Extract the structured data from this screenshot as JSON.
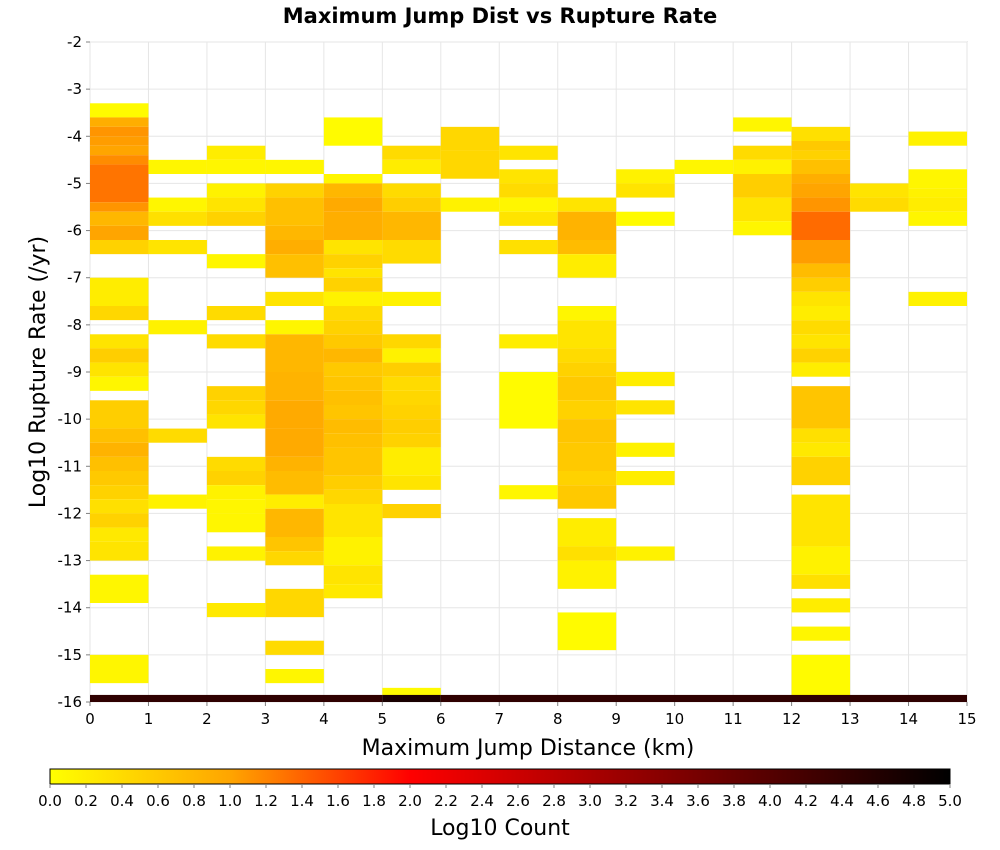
{
  "chart_data": {
    "type": "heatmap",
    "title": "Maximum Jump Dist vs Rupture Rate",
    "xlabel": "Maximum Jump Distance (km)",
    "ylabel": "Log10 Rupture Rate (/yr)",
    "xlim": [
      0,
      15
    ],
    "ylim": [
      -16,
      -2
    ],
    "x_ticks": [
      "0",
      "1",
      "2",
      "3",
      "4",
      "5",
      "6",
      "7",
      "8",
      "9",
      "10",
      "11",
      "12",
      "13",
      "14",
      "15"
    ],
    "y_ticks": [
      "-2",
      "-3",
      "-4",
      "-5",
      "-6",
      "-7",
      "-8",
      "-9",
      "-10",
      "-11",
      "-12",
      "-13",
      "-14",
      "-15",
      "-16"
    ],
    "grid": true,
    "cell_size": {
      "dx": 1,
      "dy": 0.1
    },
    "colorbar": {
      "label": "Log10 Count",
      "range": [
        0,
        5
      ],
      "ticks": [
        "0.0",
        "0.2",
        "0.4",
        "0.6",
        "0.8",
        "1.0",
        "1.2",
        "1.4",
        "1.6",
        "1.8",
        "2.0",
        "2.2",
        "2.4",
        "2.6",
        "2.8",
        "3.0",
        "3.2",
        "3.4",
        "3.6",
        "3.8",
        "4.0",
        "4.2",
        "4.4",
        "4.6",
        "4.8",
        "5.0"
      ],
      "colors": [
        "#ffff00",
        "#ffa500",
        "#ff0000",
        "#7f0000",
        "#000000"
      ]
    },
    "columns": [
      {
        "x": 0,
        "segments": [
          [
            -3.3,
            -3.6,
            0.05
          ],
          [
            -3.6,
            -3.8,
            0.9
          ],
          [
            -3.8,
            -4.0,
            1.1
          ],
          [
            -4.0,
            -4.2,
            1.05
          ],
          [
            -4.2,
            -4.4,
            1.0
          ],
          [
            -4.4,
            -4.6,
            1.15
          ],
          [
            -4.6,
            -5.4,
            1.3
          ],
          [
            -5.4,
            -5.6,
            1.1
          ],
          [
            -5.6,
            -5.9,
            0.8
          ],
          [
            -5.9,
            -6.2,
            1.0
          ],
          [
            -6.2,
            -6.5,
            0.5
          ],
          [
            -7.0,
            -7.6,
            0.2
          ],
          [
            -7.6,
            -7.9,
            0.45
          ],
          [
            -8.2,
            -8.5,
            0.3
          ],
          [
            -8.5,
            -8.8,
            0.55
          ],
          [
            -8.8,
            -9.1,
            0.3
          ],
          [
            -9.1,
            -9.4,
            0.1
          ],
          [
            -9.6,
            -10.2,
            0.55
          ],
          [
            -10.2,
            -10.5,
            0.7
          ],
          [
            -10.5,
            -10.8,
            0.85
          ],
          [
            -10.8,
            -11.1,
            0.7
          ],
          [
            -11.1,
            -11.4,
            0.6
          ],
          [
            -11.4,
            -11.7,
            0.5
          ],
          [
            -11.7,
            -12.0,
            0.35
          ],
          [
            -12.0,
            -12.3,
            0.5
          ],
          [
            -12.3,
            -12.6,
            0.25
          ],
          [
            -12.6,
            -13.0,
            0.3
          ],
          [
            -13.3,
            -13.9,
            0.1
          ],
          [
            -15.0,
            -15.6,
            0.1
          ]
        ]
      },
      {
        "x": 1,
        "segments": [
          [
            -4.5,
            -4.8,
            0.1
          ],
          [
            -5.3,
            -5.6,
            0.1
          ],
          [
            -5.6,
            -5.9,
            0.35
          ],
          [
            -6.2,
            -6.5,
            0.3
          ],
          [
            -7.9,
            -8.2,
            0.15
          ],
          [
            -10.2,
            -10.5,
            0.4
          ],
          [
            -11.6,
            -11.9,
            0.15
          ]
        ]
      },
      {
        "x": 2,
        "segments": [
          [
            -4.2,
            -4.5,
            0.2
          ],
          [
            -4.5,
            -4.8,
            0.1
          ],
          [
            -5.0,
            -5.3,
            0.15
          ],
          [
            -5.3,
            -5.6,
            0.3
          ],
          [
            -5.6,
            -5.9,
            0.5
          ],
          [
            -6.5,
            -6.8,
            0.1
          ],
          [
            -7.6,
            -7.9,
            0.4
          ],
          [
            -8.2,
            -8.5,
            0.4
          ],
          [
            -9.3,
            -9.6,
            0.5
          ],
          [
            -9.6,
            -9.9,
            0.45
          ],
          [
            -9.9,
            -10.2,
            0.3
          ],
          [
            -10.8,
            -11.1,
            0.4
          ],
          [
            -11.1,
            -11.4,
            0.5
          ],
          [
            -11.4,
            -11.7,
            0.15
          ],
          [
            -11.7,
            -12.0,
            0.1
          ],
          [
            -12.0,
            -12.4,
            0.1
          ],
          [
            -12.7,
            -13.0,
            0.15
          ],
          [
            -13.9,
            -14.2,
            0.25
          ]
        ]
      },
      {
        "x": 3,
        "segments": [
          [
            -4.5,
            -4.8,
            0.1
          ],
          [
            -5.0,
            -5.3,
            0.5
          ],
          [
            -5.3,
            -5.9,
            0.7
          ],
          [
            -5.9,
            -6.2,
            0.8
          ],
          [
            -6.2,
            -6.5,
            0.9
          ],
          [
            -6.5,
            -7.0,
            0.7
          ],
          [
            -7.3,
            -7.6,
            0.3
          ],
          [
            -7.9,
            -8.2,
            0.1
          ],
          [
            -8.2,
            -9.0,
            0.8
          ],
          [
            -9.0,
            -9.6,
            0.85
          ],
          [
            -9.6,
            -10.2,
            0.95
          ],
          [
            -10.2,
            -10.8,
            0.95
          ],
          [
            -10.8,
            -11.1,
            0.85
          ],
          [
            -11.1,
            -11.6,
            0.75
          ],
          [
            -11.6,
            -11.9,
            0.2
          ],
          [
            -11.9,
            -12.5,
            0.8
          ],
          [
            -12.5,
            -12.8,
            0.65
          ],
          [
            -12.8,
            -13.1,
            0.45
          ],
          [
            -13.6,
            -14.2,
            0.45
          ],
          [
            -14.7,
            -15.0,
            0.4
          ],
          [
            -15.3,
            -15.6,
            0.1
          ]
        ]
      },
      {
        "x": 4,
        "segments": [
          [
            -3.6,
            -4.2,
            0.05
          ],
          [
            -4.8,
            -5.0,
            0.1
          ],
          [
            -5.0,
            -5.3,
            0.8
          ],
          [
            -5.3,
            -5.6,
            0.95
          ],
          [
            -5.6,
            -6.2,
            0.9
          ],
          [
            -6.2,
            -6.5,
            0.3
          ],
          [
            -6.5,
            -6.8,
            0.5
          ],
          [
            -6.8,
            -7.0,
            0.3
          ],
          [
            -7.0,
            -7.3,
            0.5
          ],
          [
            -7.3,
            -7.6,
            0.15
          ],
          [
            -7.6,
            -7.9,
            0.4
          ],
          [
            -7.9,
            -8.2,
            0.5
          ],
          [
            -8.2,
            -8.5,
            0.6
          ],
          [
            -8.5,
            -8.8,
            0.8
          ],
          [
            -8.8,
            -9.1,
            0.6
          ],
          [
            -9.1,
            -9.4,
            0.65
          ],
          [
            -9.4,
            -9.7,
            0.7
          ],
          [
            -9.7,
            -10.0,
            0.65
          ],
          [
            -10.0,
            -10.3,
            0.75
          ],
          [
            -10.3,
            -10.6,
            0.7
          ],
          [
            -10.6,
            -11.2,
            0.65
          ],
          [
            -11.2,
            -11.5,
            0.55
          ],
          [
            -11.5,
            -11.8,
            0.45
          ],
          [
            -11.8,
            -12.5,
            0.3
          ],
          [
            -12.5,
            -13.1,
            0.15
          ],
          [
            -13.1,
            -13.5,
            0.3
          ],
          [
            -13.5,
            -13.8,
            0.25
          ]
        ]
      },
      {
        "x": 5,
        "segments": [
          [
            -4.2,
            -4.5,
            0.4
          ],
          [
            -4.5,
            -4.8,
            0.2
          ],
          [
            -5.0,
            -5.3,
            0.4
          ],
          [
            -5.3,
            -5.6,
            0.55
          ],
          [
            -5.6,
            -6.2,
            0.8
          ],
          [
            -6.2,
            -6.7,
            0.4
          ],
          [
            -7.3,
            -7.6,
            0.15
          ],
          [
            -8.2,
            -8.5,
            0.45
          ],
          [
            -8.5,
            -8.8,
            0.15
          ],
          [
            -8.8,
            -9.1,
            0.55
          ],
          [
            -9.1,
            -9.4,
            0.4
          ],
          [
            -9.4,
            -9.7,
            0.45
          ],
          [
            -9.7,
            -10.0,
            0.5
          ],
          [
            -10.0,
            -10.3,
            0.55
          ],
          [
            -10.3,
            -10.6,
            0.5
          ],
          [
            -10.6,
            -11.2,
            0.2
          ],
          [
            -11.2,
            -11.5,
            0.3
          ],
          [
            -11.8,
            -12.1,
            0.5
          ],
          [
            -15.7,
            -15.9,
            0.05
          ]
        ]
      },
      {
        "x": 6,
        "segments": [
          [
            -3.8,
            -4.3,
            0.45
          ],
          [
            -4.3,
            -4.9,
            0.45
          ],
          [
            -5.3,
            -5.6,
            0.15
          ]
        ]
      },
      {
        "x": 7,
        "segments": [
          [
            -4.2,
            -4.5,
            0.3
          ],
          [
            -4.7,
            -5.0,
            0.3
          ],
          [
            -5.0,
            -5.3,
            0.4
          ],
          [
            -5.3,
            -5.6,
            0.1
          ],
          [
            -5.6,
            -5.9,
            0.3
          ],
          [
            -6.2,
            -6.5,
            0.35
          ],
          [
            -8.2,
            -8.5,
            0.2
          ],
          [
            -9.0,
            -10.2,
            0.05
          ],
          [
            -11.4,
            -11.7,
            0.1
          ]
        ]
      },
      {
        "x": 8,
        "segments": [
          [
            -5.3,
            -5.6,
            0.3
          ],
          [
            -5.6,
            -6.2,
            0.85
          ],
          [
            -6.2,
            -6.5,
            0.75
          ],
          [
            -6.5,
            -7.0,
            0.2
          ],
          [
            -7.6,
            -7.9,
            0.1
          ],
          [
            -7.9,
            -8.5,
            0.3
          ],
          [
            -8.5,
            -8.8,
            0.4
          ],
          [
            -8.8,
            -9.1,
            0.5
          ],
          [
            -9.1,
            -9.6,
            0.6
          ],
          [
            -9.6,
            -10.0,
            0.5
          ],
          [
            -10.0,
            -10.5,
            0.65
          ],
          [
            -10.5,
            -11.1,
            0.6
          ],
          [
            -11.1,
            -11.4,
            0.5
          ],
          [
            -11.4,
            -11.9,
            0.6
          ],
          [
            -12.1,
            -12.7,
            0.2
          ],
          [
            -12.7,
            -13.0,
            0.35
          ],
          [
            -13.0,
            -13.6,
            0.15
          ],
          [
            -14.1,
            -14.9,
            0.05
          ]
        ]
      },
      {
        "x": 9,
        "segments": [
          [
            -4.7,
            -5.0,
            0.15
          ],
          [
            -5.0,
            -5.3,
            0.3
          ],
          [
            -5.6,
            -5.9,
            0.05
          ],
          [
            -9.0,
            -9.3,
            0.2
          ],
          [
            -9.6,
            -9.9,
            0.3
          ],
          [
            -10.5,
            -10.8,
            0.15
          ],
          [
            -11.1,
            -11.4,
            0.2
          ],
          [
            -12.7,
            -13.0,
            0.15
          ]
        ]
      },
      {
        "x": 10,
        "segments": [
          [
            -4.5,
            -4.8,
            0.1
          ]
        ]
      },
      {
        "x": 11,
        "segments": [
          [
            -3.6,
            -3.9,
            0.1
          ],
          [
            -4.2,
            -4.5,
            0.4
          ],
          [
            -4.5,
            -4.8,
            0.15
          ],
          [
            -4.8,
            -5.3,
            0.55
          ],
          [
            -5.3,
            -5.8,
            0.3
          ],
          [
            -5.8,
            -6.1,
            0.1
          ]
        ]
      },
      {
        "x": 12,
        "segments": [
          [
            -3.8,
            -4.1,
            0.35
          ],
          [
            -4.1,
            -4.3,
            0.6
          ],
          [
            -4.3,
            -4.5,
            0.5
          ],
          [
            -4.5,
            -4.8,
            0.7
          ],
          [
            -4.8,
            -5.0,
            0.9
          ],
          [
            -5.0,
            -5.3,
            1.0
          ],
          [
            -5.3,
            -5.6,
            1.1
          ],
          [
            -5.6,
            -6.2,
            1.35
          ],
          [
            -6.2,
            -6.7,
            1.05
          ],
          [
            -6.7,
            -7.0,
            0.75
          ],
          [
            -7.0,
            -7.3,
            0.55
          ],
          [
            -7.3,
            -7.6,
            0.3
          ],
          [
            -7.6,
            -7.9,
            0.2
          ],
          [
            -7.9,
            -8.2,
            0.4
          ],
          [
            -8.2,
            -8.5,
            0.3
          ],
          [
            -8.5,
            -8.8,
            0.5
          ],
          [
            -8.8,
            -9.1,
            0.2
          ],
          [
            -9.3,
            -10.2,
            0.65
          ],
          [
            -10.2,
            -10.5,
            0.35
          ],
          [
            -10.5,
            -10.8,
            0.25
          ],
          [
            -10.8,
            -11.4,
            0.5
          ],
          [
            -11.6,
            -12.7,
            0.3
          ],
          [
            -12.7,
            -13.3,
            0.15
          ],
          [
            -13.3,
            -13.6,
            0.35
          ],
          [
            -13.8,
            -14.1,
            0.2
          ],
          [
            -14.4,
            -14.7,
            0.1
          ],
          [
            -15.0,
            -15.9,
            0.05
          ]
        ]
      },
      {
        "x": 13,
        "segments": [
          [
            -5.0,
            -5.3,
            0.3
          ],
          [
            -5.3,
            -5.6,
            0.4
          ]
        ]
      },
      {
        "x": 14,
        "segments": [
          [
            -3.9,
            -4.2,
            0.15
          ],
          [
            -4.7,
            -5.1,
            0.1
          ],
          [
            -5.1,
            -5.3,
            0.15
          ],
          [
            -5.3,
            -5.6,
            0.2
          ],
          [
            -5.6,
            -5.9,
            0.1
          ],
          [
            -7.3,
            -7.6,
            0.15
          ]
        ]
      }
    ],
    "bottom_row": {
      "y_range": [
        -15.85,
        -16.0
      ],
      "segments": [
        [
          0,
          5,
          4.45
        ],
        [
          5,
          6,
          4.7
        ],
        [
          6,
          15,
          4.45
        ]
      ]
    }
  }
}
